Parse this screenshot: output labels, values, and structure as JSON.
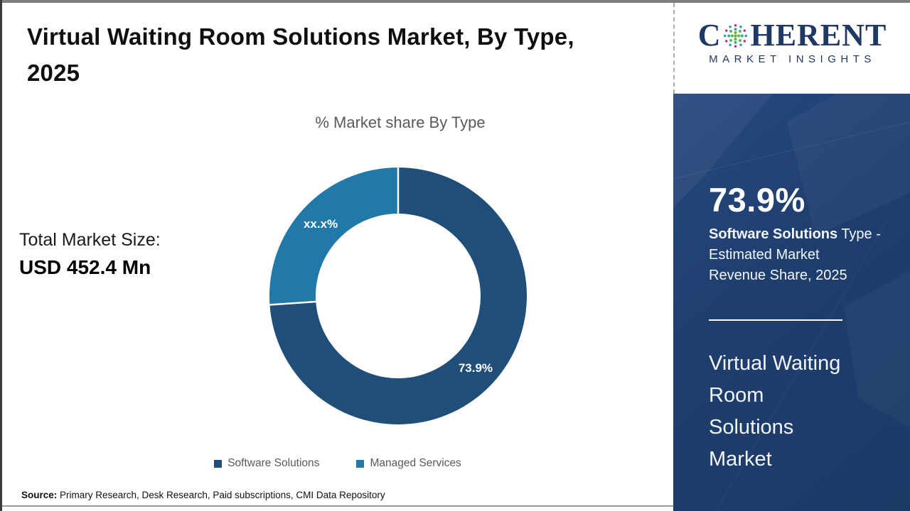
{
  "header": {
    "title": "Virtual Waiting Room Solutions Market, By Type,\n2025"
  },
  "logo": {
    "part1": "C",
    "part2": "HERENT",
    "tagline": "MARKET INSIGHTS",
    "brand_color": "#1f3864"
  },
  "left_stat": {
    "label": "Total Market Size:",
    "value": "USD 452.4 Mn"
  },
  "chart_data": {
    "type": "pie",
    "subtype": "donut",
    "title": "% Market share By Type",
    "categories": [
      "Software Solutions",
      "Managed Services"
    ],
    "values": [
      73.9,
      26.1
    ],
    "labels": [
      "73.9%",
      "xx.x%"
    ],
    "colors": [
      "#1f4e79",
      "#2079a8"
    ],
    "start_angle_deg": -90,
    "direction": "clockwise",
    "inner_radius_ratio": 0.64,
    "legend_position": "bottom",
    "label_color": "#ffffff"
  },
  "side_panel": {
    "stat_value": "73.9%",
    "stat_desc_bold": "Software Solutions",
    "stat_desc_rest": " Type -\nEstimated Market\nRevenue Share, 2025",
    "market_name": "Virtual Waiting\nRoom\nSolutions\nMarket",
    "background_color": "#1e3e6d"
  },
  "footer": {
    "source_label": "Source:",
    "source_text": " Primary Research, Desk Research, Paid subscriptions, CMI Data Repository"
  }
}
